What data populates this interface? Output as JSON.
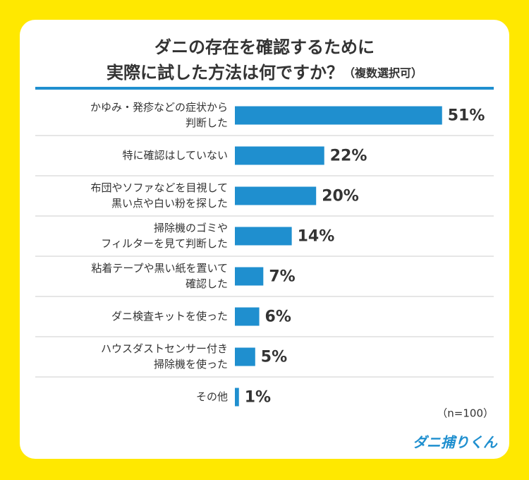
{
  "chart_data": {
    "type": "bar",
    "orientation": "horizontal",
    "title": [
      "ダニの存在を確認するために",
      "実際に試した方法は何ですか？"
    ],
    "subtitle": "（複数選択可）",
    "categories": [
      [
        "かゆみ・発疹などの症状から",
        "判断した"
      ],
      [
        "特に確認はしていない"
      ],
      [
        "布団やソファなどを目視して",
        "黒い点や白い粉を探した"
      ],
      [
        "掃除機のゴミや",
        "フィルターを見て判断した"
      ],
      [
        "粘着テープや黒い紙を置いて",
        "確認した"
      ],
      [
        "ダニ検査キットを使った"
      ],
      [
        "ハウスダストセンサー付き",
        "掃除機を使った"
      ],
      [
        "その他"
      ]
    ],
    "values": [
      51,
      22,
      20,
      14,
      7,
      6,
      5,
      1
    ],
    "value_labels": [
      "51%",
      "22%",
      "20%",
      "14%",
      "7%",
      "6%",
      "5%",
      "1%"
    ],
    "color": "#1f8fcf",
    "note": "（n=100）",
    "logo": "ダニ捕りくん"
  }
}
